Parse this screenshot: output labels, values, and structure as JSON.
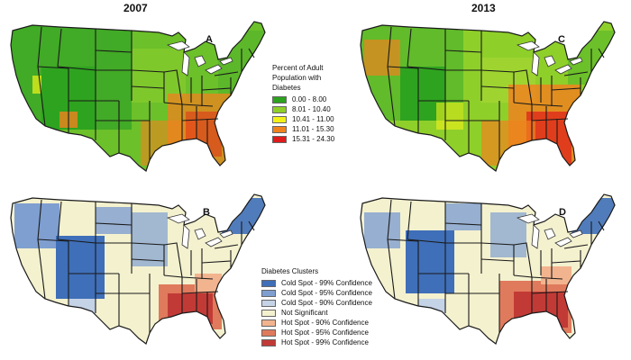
{
  "panels": [
    {
      "id": "A",
      "year": "2007",
      "letter": "A",
      "type": "percent"
    },
    {
      "id": "B",
      "year": "",
      "letter": "B",
      "type": "cluster"
    },
    {
      "id": "C",
      "year": "2013",
      "letter": "C",
      "type": "percent"
    },
    {
      "id": "D",
      "year": "",
      "letter": "D",
      "type": "cluster"
    }
  ],
  "legend_percent": {
    "title_lines": [
      "Percent of Adult",
      "Population with",
      "Diabetes"
    ],
    "items": [
      {
        "label": "0.00 - 8.00",
        "color": "#2ea31f"
      },
      {
        "label": "8.01 - 10.40",
        "color": "#8fcf2a"
      },
      {
        "label": "10.41 - 11.00",
        "color": "#f2f21a"
      },
      {
        "label": "11.01 - 15.30",
        "color": "#f0821e"
      },
      {
        "label": "15.31 - 24.30",
        "color": "#e01b1b"
      }
    ]
  },
  "legend_cluster": {
    "title": "Diabetes Clusters",
    "items": [
      {
        "label": "Cold Spot - 99% Confidence",
        "color": "#3f6fb8"
      },
      {
        "label": "Cold Spot - 95% Confidence",
        "color": "#7f9fd0"
      },
      {
        "label": "Cold Spot - 90% Confidence",
        "color": "#c5d3e6"
      },
      {
        "label": "Not Significant",
        "color": "#f4f1cf"
      },
      {
        "label": "Hot Spot - 90% Confidence",
        "color": "#f2b48f"
      },
      {
        "label": "Hot Spot - 95% Confidence",
        "color": "#e07a5c"
      },
      {
        "label": "Hot Spot - 99% Confidence",
        "color": "#c23a36"
      }
    ]
  }
}
